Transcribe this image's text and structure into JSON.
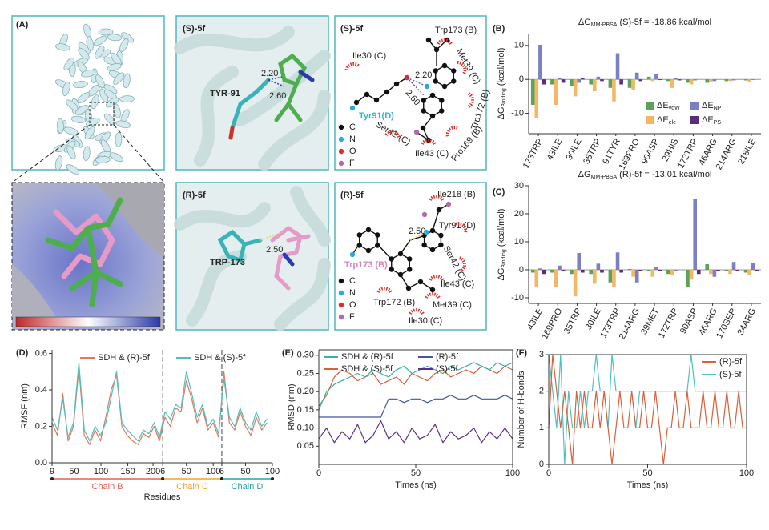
{
  "panel_labels": [
    "(A)",
    "(B)",
    "(C)",
    "(D)",
    "(E)",
    "(F)"
  ],
  "structures": [
    {
      "title": "(S)-5f",
      "residue": "TYR-91",
      "distances": [
        "2.20",
        "2.60"
      ]
    },
    {
      "title": "(R)-5f",
      "residue": "TRP-173",
      "distances": [
        "2.50"
      ]
    }
  ],
  "diagrams": [
    {
      "title": "(S)-5f",
      "residues": [
        "Trp173 (B)",
        "Ile30 (C)",
        "Met39 (C)",
        "Trp172 (B)",
        "Tyr91(D)",
        "Ser42 (C)",
        "Ile43 (C)",
        "Pro169 (B)"
      ],
      "distances": [
        "2.20",
        "2.60"
      ],
      "atoms": [
        "C",
        "N",
        "O",
        "F"
      ]
    },
    {
      "title": "(R)-5f",
      "residues": [
        "Ile218 (B)",
        "Tyr91 (D)",
        "Ser42 (C)",
        "Trp173 (B)",
        "Ile43 (C)",
        "Trp172 (B)",
        "Met39 (C)",
        "Ile30 (C)"
      ],
      "distances": [
        "2.50"
      ],
      "atoms": [
        "C",
        "N",
        "O",
        "F"
      ]
    }
  ],
  "chart_data": [
    {
      "type": "bar",
      "title": "ΔG",
      "title_subscript": "MM-PBSA",
      "title_suffix": "(S)-5f = -18.86 kcal/mol",
      "ylabel": "ΔG",
      "ylabel_subscript": "Binding",
      "ylabel_suffix": "(kcal/mol)",
      "categories": [
        "173TRP",
        "43ILE",
        "30ILE",
        "35TRP",
        "91TYR",
        "169PRO",
        "90ASP",
        "29HIS",
        "172TRP",
        "46ARG",
        "214ARG",
        "218ILE"
      ],
      "series": [
        {
          "name": "ΔE",
          "subscript": "vdW",
          "color": "#5ba35b",
          "values": [
            -7.5,
            -1.5,
            -2,
            -1.5,
            -2.5,
            -2.5,
            0.8,
            -0.5,
            -1,
            -1,
            -0.5,
            -0.3
          ]
        },
        {
          "name": "ΔE",
          "subscript": "ele",
          "color": "#f2b866",
          "values": [
            -11.5,
            -7.5,
            -5,
            -3.5,
            -6.5,
            -3,
            -0.5,
            -2.5,
            -1.5,
            -0.8,
            -0.5,
            -0.8
          ]
        },
        {
          "name": "ΔE",
          "subscript": "NP",
          "color": "#7b80c4",
          "values": [
            10.2,
            0.5,
            -1,
            0.8,
            7.7,
            2,
            1.5,
            0.5,
            -0.3,
            -0.5,
            -0.3,
            -0.2
          ]
        },
        {
          "name": "ΔE",
          "subscript": "PS",
          "color": "#5a2d7e",
          "values": [
            -1.5,
            -1,
            0.3,
            -0.5,
            -1.5,
            -0.5,
            -0.2,
            -0.3,
            0,
            0,
            0,
            0
          ]
        }
      ],
      "ylim": [
        -16,
        13.5
      ],
      "yticks": [
        -10,
        0,
        10
      ],
      "legend": true
    },
    {
      "type": "bar",
      "title": "ΔG",
      "title_subscript": "MM-PBSA",
      "title_suffix": "(R)-5f = -13.01 kcal/mol",
      "ylabel": "ΔG",
      "ylabel_subscript": "Binding",
      "ylabel_suffix": "(kcal/mol)",
      "categories": [
        "43ILE",
        "169PRO",
        "35TRP",
        "30ILE",
        "173TRP",
        "214ARG",
        "39MET",
        "172TRP",
        "90ASP",
        "46ARG",
        "170SER",
        "34ARG"
      ],
      "series": [
        {
          "name": "ΔE",
          "subscript": "vdW",
          "color": "#5ba35b",
          "values": [
            -1,
            -1,
            -1.5,
            -1.5,
            -4.5,
            0.3,
            -0.5,
            -1.5,
            -6,
            2,
            -0.5,
            -1
          ]
        },
        {
          "name": "ΔE",
          "subscript": "ele",
          "color": "#f2b866",
          "values": [
            -6,
            -6,
            -9.5,
            -5,
            -6,
            -2.5,
            -2.5,
            -2,
            -3.5,
            -1.5,
            -1.5,
            -2
          ]
        },
        {
          "name": "ΔE",
          "subscript": "NP",
          "color": "#7b80c4",
          "values": [
            0.5,
            1.5,
            6,
            2.2,
            6.2,
            -4.5,
            1,
            -0.5,
            25.2,
            -2.5,
            2.8,
            2.5
          ]
        },
        {
          "name": "ΔE",
          "subscript": "PS",
          "color": "#5a2d7e",
          "values": [
            -1.5,
            -0.5,
            -1,
            -1,
            -1,
            -0.5,
            -0.3,
            0,
            -1.5,
            -0.5,
            -0.5,
            -0.5
          ]
        }
      ],
      "ylim": [
        -12,
        30
      ],
      "yticks": [
        -10,
        0,
        10,
        20,
        30
      ],
      "legend": false
    },
    {
      "type": "line",
      "ylabel": "RMSF (nm)",
      "xlabel": "Residues",
      "x": [
        0,
        10,
        20,
        30,
        40,
        50,
        60,
        70,
        80,
        90,
        100,
        110,
        120,
        130,
        140,
        150,
        160,
        170,
        180,
        190,
        200,
        210,
        220,
        230,
        240,
        250,
        260,
        270,
        280,
        290,
        300,
        310,
        320,
        330,
        340,
        350,
        360,
        370,
        380,
        390,
        400
      ],
      "series": [
        {
          "name": "SDH & (R)-5f",
          "color": "#e07a5f",
          "values": [
            0.22,
            0.15,
            0.38,
            0.12,
            0.2,
            0.52,
            0.15,
            0.1,
            0.18,
            0.12,
            0.25,
            0.4,
            0.48,
            0.2,
            0.15,
            0.12,
            0.1,
            0.16,
            0.14,
            0.2,
            0.12,
            0.25,
            0.2,
            0.3,
            0.28,
            0.45,
            0.35,
            0.22,
            0.3,
            0.18,
            0.22,
            0.14,
            0.5,
            0.22,
            0.18,
            0.28,
            0.2,
            0.15,
            0.25,
            0.18,
            0.22
          ]
        },
        {
          "name": "SDH & (S)-5f",
          "color": "#4fc0c0",
          "values": [
            0.25,
            0.18,
            0.35,
            0.14,
            0.22,
            0.55,
            0.18,
            0.12,
            0.2,
            0.15,
            0.22,
            0.36,
            0.5,
            0.22,
            0.18,
            0.15,
            0.12,
            0.18,
            0.16,
            0.22,
            0.14,
            0.28,
            0.24,
            0.32,
            0.3,
            0.5,
            0.38,
            0.25,
            0.32,
            0.2,
            0.24,
            0.16,
            0.46,
            0.25,
            0.2,
            0.3,
            0.22,
            0.18,
            0.28,
            0.2,
            0.24
          ]
        }
      ],
      "chains": [
        {
          "name": "Chain B",
          "color": "#e0604a",
          "start": 0,
          "end": 206
        },
        {
          "name": "Chain C",
          "color": "#f0a030",
          "start": 206,
          "end": 316
        },
        {
          "name": "Chain D",
          "color": "#2aa0a8",
          "start": 316,
          "end": 410
        }
      ],
      "xlim": [
        0,
        410
      ],
      "xticks": [
        {
          "value": 0,
          "label": "9"
        },
        {
          "value": 41,
          "label": "50"
        },
        {
          "value": 91,
          "label": "100"
        },
        {
          "value": 141,
          "label": "150"
        },
        {
          "value": 188,
          "label": "200"
        },
        {
          "value": 206,
          "label": "6"
        },
        {
          "value": 250,
          "label": "50"
        },
        {
          "value": 300,
          "label": "100"
        },
        {
          "value": 316,
          "label": "6"
        },
        {
          "value": 360,
          "label": "50"
        },
        {
          "value": 410,
          "label": "100"
        }
      ],
      "ylim": [
        0,
        0.62
      ],
      "yticks": [
        {
          "value": 0,
          "label": "0.0"
        },
        0.2,
        0.4,
        0.6
      ],
      "box": false
    },
    {
      "type": "line",
      "ylabel": "RMSD (nm)",
      "xlabel": "Times (ns)",
      "x": [
        0,
        4,
        8,
        12,
        16,
        20,
        24,
        28,
        32,
        36,
        40,
        44,
        48,
        52,
        56,
        60,
        64,
        68,
        72,
        76,
        80,
        84,
        88,
        92,
        96,
        100
      ],
      "series": [
        {
          "name": "SDH & (R)-5f",
          "color": "#36b0aa",
          "values": [
            0.15,
            0.2,
            0.22,
            0.23,
            0.24,
            0.25,
            0.24,
            0.26,
            0.25,
            0.24,
            0.26,
            0.27,
            0.25,
            0.26,
            0.27,
            0.26,
            0.25,
            0.27,
            0.26,
            0.27,
            0.28,
            0.27,
            0.26,
            0.28,
            0.27,
            0.28
          ]
        },
        {
          "name": "SDH & (S)-5f",
          "color": "#d9603b",
          "values": [
            0.16,
            0.19,
            0.24,
            0.26,
            0.25,
            0.23,
            0.24,
            0.25,
            0.22,
            0.23,
            0.24,
            0.22,
            0.25,
            0.24,
            0.23,
            0.25,
            0.26,
            0.24,
            0.25,
            0.26,
            0.25,
            0.27,
            0.26,
            0.25,
            0.27,
            0.26
          ]
        },
        {
          "name": "(R)-5f",
          "color": "#4455a0",
          "values": [
            0.13,
            0.13,
            0.13,
            0.13,
            0.13,
            0.13,
            0.13,
            0.13,
            0.13,
            0.18,
            0.18,
            0.17,
            0.18,
            0.18,
            0.17,
            0.18,
            0.18,
            0.19,
            0.18,
            0.18,
            0.19,
            0.18,
            0.18,
            0.18,
            0.19,
            0.18
          ]
        },
        {
          "name": "(S)-5f",
          "color": "#5b2d8e",
          "values": [
            0.07,
            0.1,
            0.06,
            0.09,
            0.07,
            0.11,
            0.06,
            0.08,
            0.12,
            0.07,
            0.09,
            0.06,
            0.1,
            0.07,
            0.08,
            0.11,
            0.06,
            0.09,
            0.07,
            0.08,
            0.1,
            0.06,
            0.09,
            0.07,
            0.1,
            0.07
          ]
        }
      ],
      "xlim": [
        0,
        100
      ],
      "xticks": [
        0,
        50,
        100
      ],
      "ylim": [
        0,
        0.315
      ],
      "yticks": [
        0.05,
        {
          "value": 0.1,
          "label": "0.10"
        },
        0.15,
        {
          "value": 0.2,
          "label": "0.20"
        },
        0.25,
        {
          "value": 0.3,
          "label": "0.30"
        }
      ],
      "box": true
    },
    {
      "type": "line",
      "ylabel": "Number of H-bonds",
      "xlabel": "Times (ns)",
      "x": [
        0,
        2,
        4,
        6,
        8,
        10,
        12,
        14,
        16,
        18,
        20,
        22,
        24,
        26,
        28,
        30,
        32,
        34,
        36,
        38,
        40,
        42,
        44,
        46,
        48,
        50,
        52,
        54,
        56,
        58,
        60,
        62,
        64,
        66,
        68,
        70,
        72,
        74,
        76,
        78,
        80,
        82,
        84,
        86,
        88,
        90,
        92,
        94,
        96,
        98,
        100
      ],
      "series": [
        {
          "name": "(R)-5f",
          "color": "#d9603b",
          "values": [
            1,
            3,
            2,
            1,
            2,
            1,
            0,
            2,
            1,
            2,
            1,
            1,
            2,
            1,
            2,
            1,
            0,
            1,
            2,
            1,
            1,
            2,
            1,
            1,
            2,
            1,
            1,
            2,
            1,
            0,
            1,
            1,
            2,
            1,
            1,
            2,
            1,
            1,
            1,
            2,
            1,
            1,
            2,
            1,
            1,
            2,
            1,
            1,
            2,
            1,
            1
          ]
        },
        {
          "name": "(S)-5f",
          "color": "#4fc0c0",
          "values": [
            3,
            2,
            1,
            3,
            0,
            2,
            1,
            1,
            2,
            1,
            2,
            2,
            3,
            2,
            2,
            1,
            3,
            2,
            2,
            2,
            2,
            2,
            1,
            2,
            2,
            2,
            2,
            2,
            2,
            2,
            2,
            2,
            2,
            2,
            2,
            2,
            3,
            2,
            2,
            2,
            2,
            2,
            2,
            2,
            2,
            2,
            2,
            2,
            2,
            2,
            2
          ]
        }
      ],
      "xlim": [
        0,
        100
      ],
      "xticks": [
        0,
        50,
        100
      ],
      "ylim": [
        0,
        3
      ],
      "yticks": [
        0,
        1,
        2,
        3
      ],
      "box": true
    }
  ]
}
